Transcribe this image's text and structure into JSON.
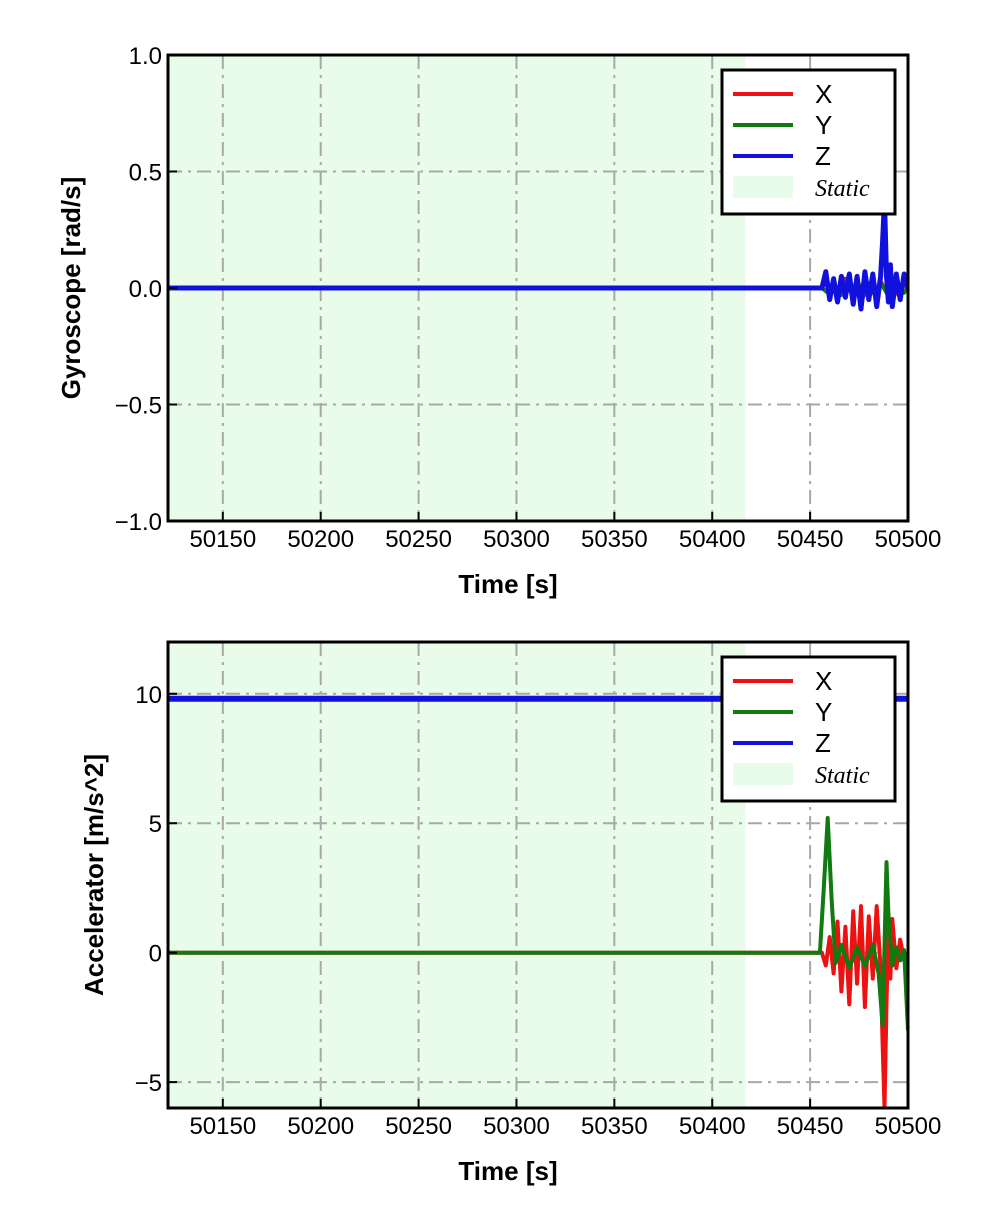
{
  "colors": {
    "X": "#ee1111",
    "Y": "#117a11",
    "Z": "#1111dd",
    "static_fill": "#e9fbe9",
    "grid": "#a8a8a8"
  },
  "chart_data": [
    {
      "type": "line",
      "xlabel": "Time [s]",
      "ylabel": "Gyroscope [rad/s]",
      "xlim": [
        50122,
        50500
      ],
      "ylim": [
        -1.0,
        1.0
      ],
      "xticks": [
        50150,
        50200,
        50250,
        50300,
        50350,
        50400,
        50450,
        50500
      ],
      "yticks": [
        -1.0,
        -0.5,
        0.0,
        0.5,
        1.0
      ],
      "ytick_labels": [
        "−1.0",
        "−0.5",
        "0.0",
        "0.5",
        "1.0"
      ],
      "grid": true,
      "legend_position": "top-right",
      "static_region": [
        50122,
        50417
      ],
      "legend": [
        "X",
        "Y",
        "Z",
        "Static"
      ],
      "series": [
        {
          "name": "X",
          "color_key": "X",
          "x": [
            50122,
            50456,
            50458,
            50460,
            50462,
            50465,
            50468,
            50471,
            50474,
            50477,
            50480,
            50483,
            50486,
            50489,
            50492,
            50495,
            50498,
            50500
          ],
          "y": [
            0.0,
            0.0,
            0.03,
            -0.04,
            0.02,
            -0.03,
            0.04,
            -0.02,
            0.03,
            -0.04,
            0.02,
            -0.03,
            0.03,
            -0.02,
            0.04,
            -0.03,
            0.02,
            0.0
          ]
        },
        {
          "name": "Y",
          "color_key": "Y",
          "x": [
            50122,
            50456,
            50459,
            50462,
            50466,
            50470,
            50474,
            50478,
            50482,
            50486,
            50490,
            50494,
            50498,
            50500
          ],
          "y": [
            0.0,
            0.0,
            -0.02,
            0.02,
            -0.03,
            0.02,
            -0.02,
            0.03,
            -0.02,
            0.02,
            -0.03,
            0.02,
            -0.02,
            0.0
          ]
        },
        {
          "name": "Z",
          "color_key": "Z",
          "x": [
            50122,
            50456,
            50458,
            50460,
            50462,
            50464,
            50466,
            50468,
            50470,
            50472,
            50474,
            50476,
            50478,
            50480,
            50482,
            50484,
            50486,
            50487,
            50488,
            50489,
            50490,
            50491,
            50492,
            50494,
            50496,
            50498,
            50500
          ],
          "y": [
            0.0,
            0.0,
            0.07,
            -0.05,
            0.04,
            -0.06,
            0.05,
            -0.04,
            0.06,
            -0.07,
            0.05,
            -0.09,
            0.07,
            -0.05,
            0.06,
            -0.08,
            0.05,
            0.2,
            0.38,
            0.05,
            -0.06,
            0.1,
            -0.08,
            0.06,
            -0.05,
            0.06,
            0.0
          ]
        }
      ]
    },
    {
      "type": "line",
      "xlabel": "Time [s]",
      "ylabel": "Accelerator [m/s^2]",
      "xlim": [
        50122,
        50500
      ],
      "ylim": [
        -6.0,
        12.0
      ],
      "xticks": [
        50150,
        50200,
        50250,
        50300,
        50350,
        50400,
        50450,
        50500
      ],
      "yticks": [
        -5,
        0,
        5,
        10
      ],
      "ytick_labels": [
        "−5",
        "0",
        "5",
        "10"
      ],
      "grid": true,
      "legend_position": "top-right",
      "static_region": [
        50122,
        50417
      ],
      "legend": [
        "X",
        "Y",
        "Z",
        "Static"
      ],
      "series": [
        {
          "name": "X",
          "color_key": "X",
          "x": [
            50122,
            50456,
            50458,
            50460,
            50462,
            50464,
            50466,
            50468,
            50470,
            50472,
            50474,
            50476,
            50478,
            50480,
            50482,
            50484,
            50486,
            50487,
            50488,
            50489,
            50490,
            50491,
            50492,
            50494,
            50496,
            50498,
            50500
          ],
          "y": [
            0.0,
            0.0,
            -0.5,
            0.6,
            -0.8,
            1.2,
            -1.5,
            1.0,
            -2.0,
            1.6,
            -1.2,
            1.8,
            -2.1,
            1.4,
            -1.0,
            1.8,
            -0.6,
            -3.5,
            -6.0,
            -2.0,
            1.2,
            -1.0,
            1.3,
            -0.6,
            0.5,
            -0.3,
            0.0
          ]
        },
        {
          "name": "Y",
          "color_key": "Y",
          "x": [
            50122,
            50455,
            50457,
            50459,
            50461,
            50463,
            50466,
            50470,
            50474,
            50478,
            50482,
            50485,
            50487,
            50489,
            50490,
            50492,
            50494,
            50496,
            50498,
            50500
          ],
          "y": [
            0.0,
            0.0,
            2.5,
            5.2,
            2.0,
            -0.4,
            0.3,
            -0.6,
            0.2,
            -0.5,
            0.3,
            -0.8,
            -2.8,
            3.5,
            1.5,
            -0.5,
            0.2,
            -0.3,
            0.1,
            -3.0
          ]
        },
        {
          "name": "Z",
          "color_key": "Z",
          "x": [
            50122,
            50500
          ],
          "y": [
            9.81,
            9.81
          ]
        }
      ]
    }
  ]
}
